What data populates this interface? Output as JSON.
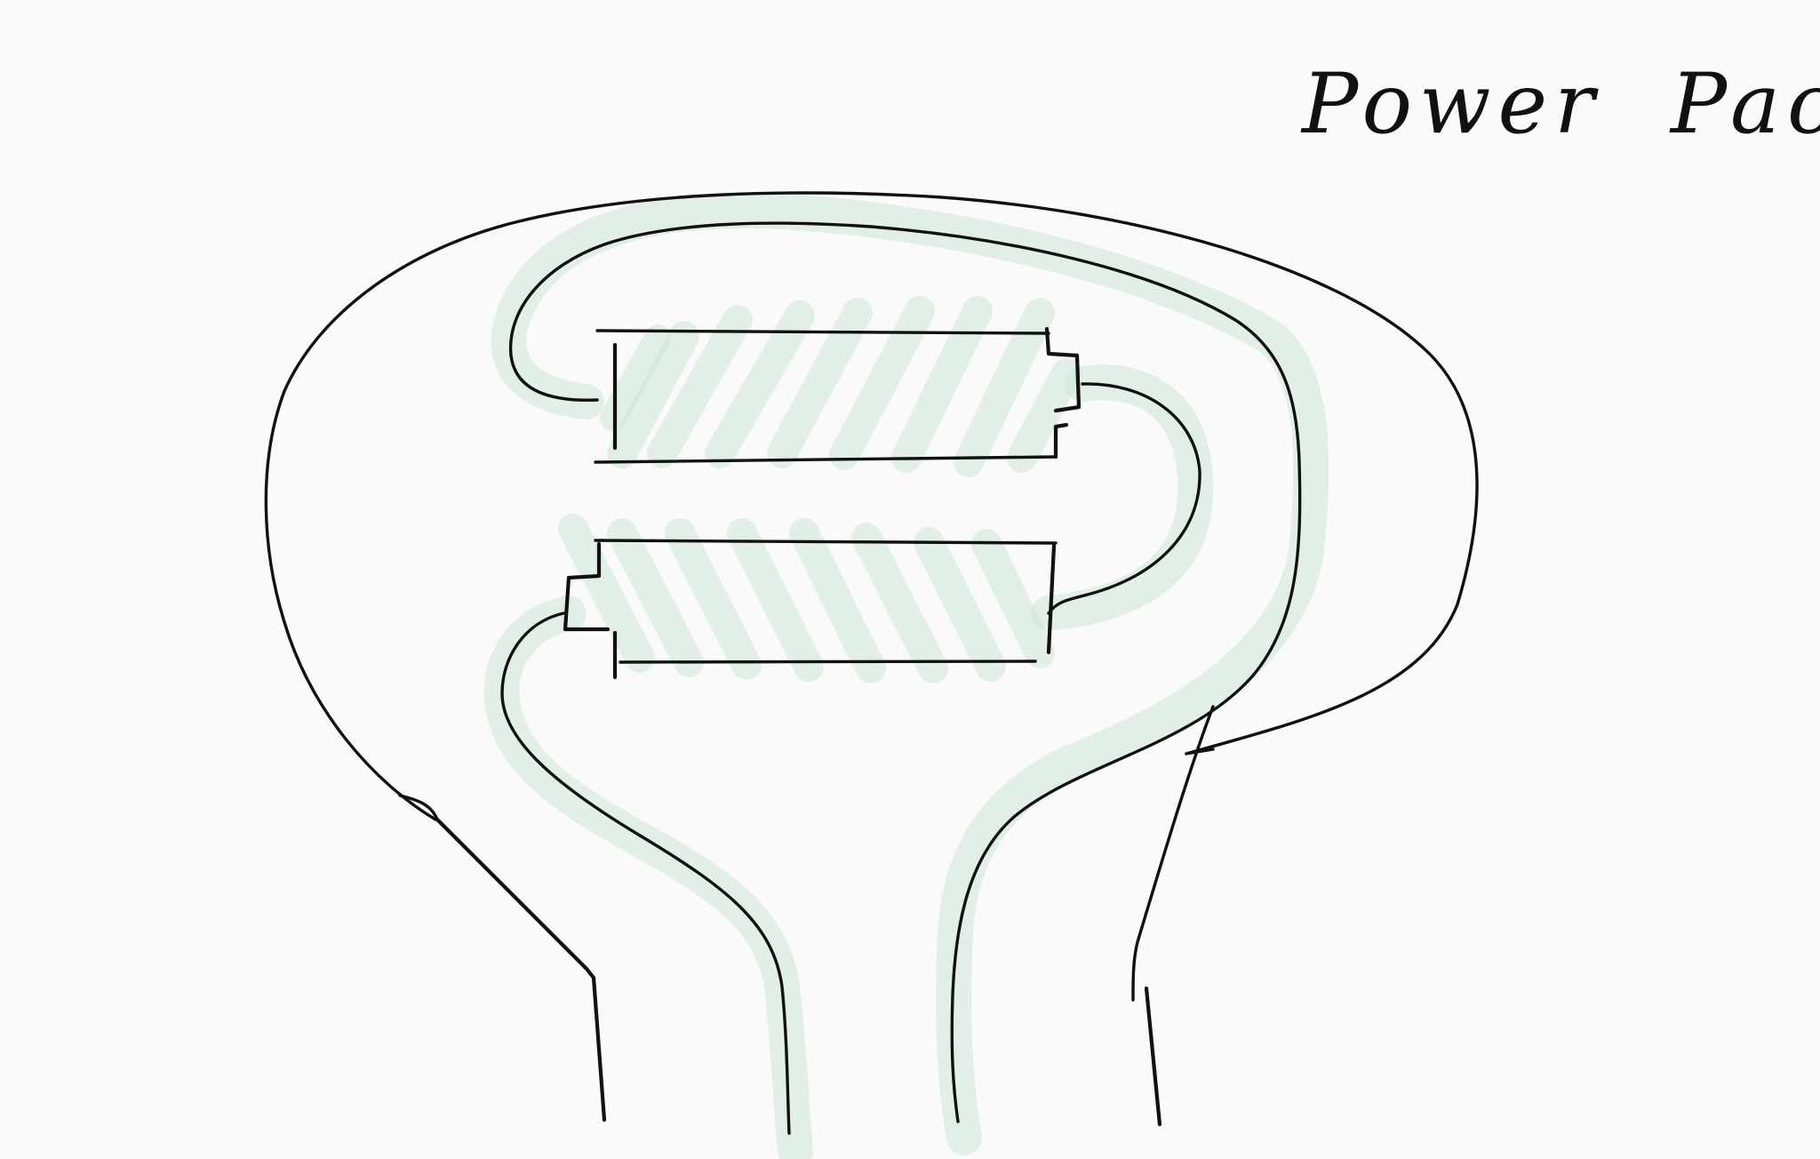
{
  "title": "Power Pack",
  "colors": {
    "ink": "#111111",
    "highlight": "#c5e3d1",
    "paper": "#fafafa"
  }
}
